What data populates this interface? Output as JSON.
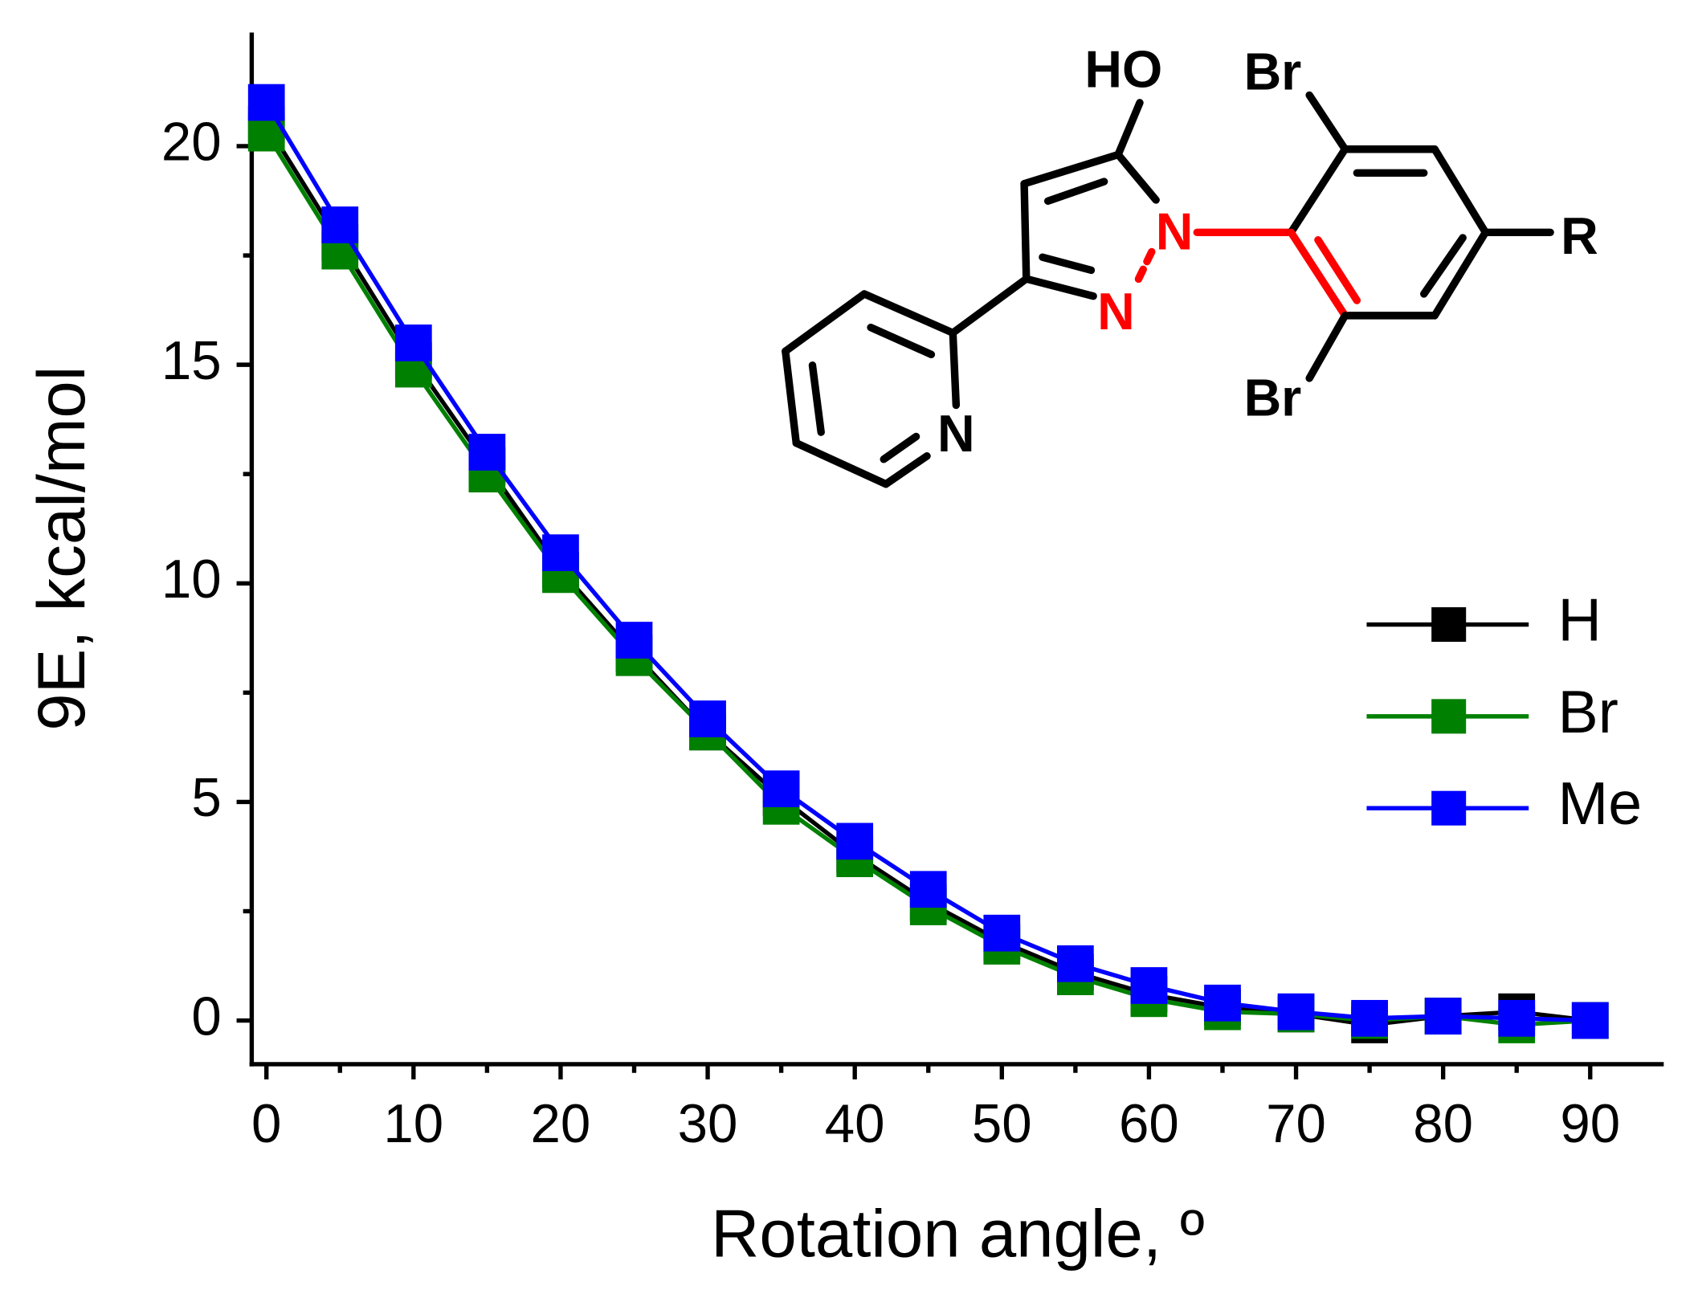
{
  "chart_data": {
    "type": "line",
    "x_label": "Rotation angle, º",
    "y_label": "9E, kcal/mol",
    "x": [
      0,
      5,
      10,
      15,
      20,
      25,
      30,
      35,
      40,
      45,
      50,
      55,
      60,
      65,
      70,
      75,
      80,
      85,
      90
    ],
    "series": [
      {
        "name": "H",
        "color": "#000000",
        "values": [
          20.5,
          17.8,
          15.1,
          12.7,
          10.3,
          8.4,
          6.6,
          5.1,
          3.8,
          2.7,
          1.8,
          1.1,
          0.6,
          0.3,
          0.15,
          -0.1,
          0.1,
          0.2,
          0.0
        ]
      },
      {
        "name": "Br",
        "color": "#008000",
        "values": [
          20.3,
          17.6,
          14.9,
          12.5,
          10.2,
          8.3,
          6.6,
          4.9,
          3.7,
          2.6,
          1.7,
          1.0,
          0.5,
          0.2,
          0.15,
          0.0,
          0.1,
          -0.1,
          0.0
        ]
      },
      {
        "name": "Me",
        "color": "#0000ff",
        "values": [
          21.0,
          18.2,
          15.5,
          13.0,
          10.7,
          8.7,
          6.9,
          5.3,
          4.1,
          3.0,
          2.0,
          1.3,
          0.8,
          0.4,
          0.2,
          0.05,
          0.1,
          0.05,
          0.0
        ]
      }
    ],
    "marker": "square",
    "xlim": [
      -1,
      95
    ],
    "ylim": [
      -1,
      22.6
    ],
    "xticks": [
      0,
      10,
      20,
      30,
      40,
      50,
      60,
      70,
      80,
      90
    ],
    "minor_xticks": [
      5,
      15,
      25,
      35,
      45,
      55,
      65,
      75,
      85
    ],
    "yticks": [
      0,
      5,
      10,
      15,
      20
    ],
    "minor_yticks": [
      2.5,
      7.5,
      12.5,
      17.5
    ],
    "legend": "right"
  },
  "structure": {
    "labels": {
      "hydroxyl": "HO",
      "bromine_top": "Br",
      "bromine_bottom": "Br",
      "pyrazole_n1": "N",
      "pyrazole_n2": "N",
      "pyridine_n": "N",
      "substituent": "R"
    }
  }
}
